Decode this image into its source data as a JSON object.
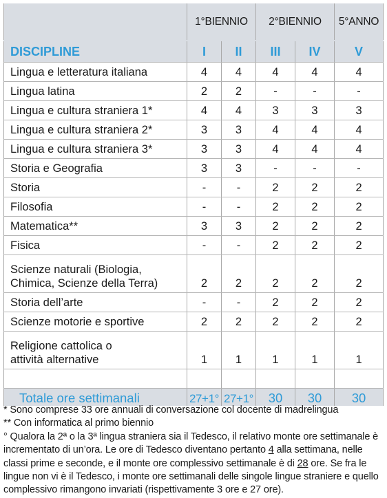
{
  "header": {
    "bands": [
      "1°BIENNIO",
      "2°BIENNIO",
      "5°ANNO"
    ],
    "discipline_label": "DISCIPLINE",
    "years": [
      "I",
      "II",
      "III",
      "IV",
      "V"
    ]
  },
  "rows": [
    {
      "name": "Lingua e letteratura italiana",
      "hours": [
        "4",
        "4",
        "4",
        "4",
        "4"
      ]
    },
    {
      "name": "Lingua latina",
      "hours": [
        "2",
        "2",
        "-",
        "-",
        "-"
      ]
    },
    {
      "name": "Lingua e cultura straniera 1*",
      "hours": [
        "4",
        "4",
        "3",
        "3",
        "3"
      ]
    },
    {
      "name": "Lingua e cultura straniera 2*",
      "hours": [
        "3",
        "3",
        "4",
        "4",
        "4"
      ]
    },
    {
      "name": "Lingua e cultura straniera 3*",
      "hours": [
        "3",
        "3",
        "4",
        "4",
        "4"
      ]
    },
    {
      "name": "Storia e Geografia",
      "hours": [
        "3",
        "3",
        "-",
        "-",
        "-"
      ]
    },
    {
      "name": "Storia",
      "hours": [
        "-",
        "-",
        "2",
        "2",
        "2"
      ]
    },
    {
      "name": "Filosofia",
      "hours": [
        "-",
        "-",
        "2",
        "2",
        "2"
      ]
    },
    {
      "name": "Matematica**",
      "hours": [
        "3",
        "3",
        "2",
        "2",
        "2"
      ]
    },
    {
      "name": "Fisica",
      "hours": [
        "-",
        "-",
        "2",
        "2",
        "2"
      ]
    },
    {
      "name_line1": "Scienze naturali (Biologia,",
      "name_line2": "Chimica, Scienze della Terra)",
      "hours": [
        "2",
        "2",
        "2",
        "2",
        "2"
      ]
    },
    {
      "name": "Storia dell’arte",
      "hours": [
        "-",
        "-",
        "2",
        "2",
        "2"
      ]
    },
    {
      "name": "Scienze motorie e sportive",
      "hours": [
        "2",
        "2",
        "2",
        "2",
        "2"
      ]
    },
    {
      "name_line1": "Religione cattolica o",
      "name_line2": "attività alternative",
      "hours": [
        "1",
        "1",
        "1",
        "1",
        "1"
      ]
    }
  ],
  "total": {
    "label": "Totale ore settimanali",
    "values": [
      "27+1°",
      "27+1°",
      "30",
      "30",
      "30"
    ]
  },
  "notes": {
    "note1": "* Sono comprese 33 ore annuali di conversazione col docente di madrelingua",
    "note2": "** Con informatica al primo biennio",
    "note3_a": "° Qualora la 2ª o la 3ª lingua straniera sia il Tedesco, il relativo monte ore settimanale è incrementato di un’ora. Le ore di Tedesco diventano pertanto ",
    "note3_hours_week": "4",
    "note3_b": " alla settimana, nelle classi prime e seconde, e il monte ore complessivo settimanale è di ",
    "note3_total": "28",
    "note3_c": " ore. Se fra le lingue non vi è il Tedesco, i monte ore settimanali delle singole lingue straniere e quello complessivo rimangono invariati (rispettivamente 3 ore e 27 ore)."
  }
}
